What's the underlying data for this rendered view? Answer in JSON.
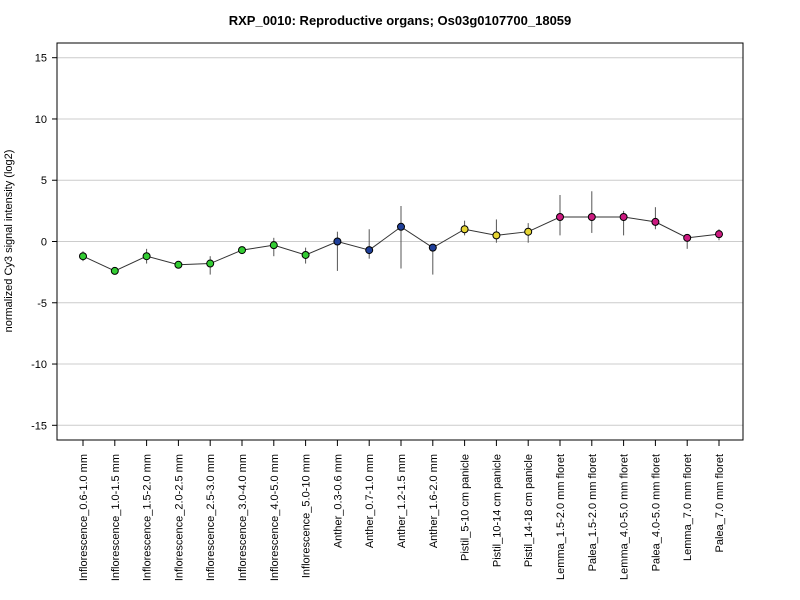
{
  "chart_data": {
    "type": "line",
    "title": "RXP_0010: Reproductive organs; Os03g0107700_18059",
    "xlabel": "",
    "ylabel": "normalized Cy3 signal intensity (log2)",
    "ylim": [
      -16.2,
      16.2
    ],
    "yticks": [
      -15,
      -10,
      -5,
      0,
      5,
      10,
      15
    ],
    "grid": true,
    "legend": "none",
    "categories": [
      "Inflorescence_0.6-1.0 mm",
      "Inflorescence_1.0-1.5 mm",
      "Inflorescence_1.5-2.0 mm",
      "Inflorescence_2.0-2.5 mm",
      "Inflorescence_2.5-3.0 mm",
      "Inflorescence_3.0-4.0 mm",
      "Inflorescence_4.0-5.0 mm",
      "Inflorescence_5.0-10 mm",
      "Anther_0.3-0.6 mm",
      "Anther_0.7-1.0 mm",
      "Anther_1.2-1.5 mm",
      "Anther_1.6-2.0 mm",
      "Pistil_5-10 cm panicle",
      "Pistil_10-14 cm panicle",
      "Pistil_14-18 cm panicle",
      "Lemma_1.5-2.0 mm floret",
      "Palea_1.5-2.0 mm floret",
      "Lemma_4.0-5.0 mm floret",
      "Palea_4.0-5.0 mm floret",
      "Lemma_7.0 mm floret",
      "Palea_7.0 mm floret"
    ],
    "series": [
      {
        "values": [
          -1.2,
          -2.4,
          -1.2,
          -1.9,
          -1.8,
          -0.7,
          -0.3,
          -1.1,
          0.0,
          -0.7,
          1.2,
          -0.5,
          1.0,
          0.5,
          0.8,
          2.0,
          2.0,
          2.0,
          1.6,
          0.3,
          0.6
        ],
        "err_low": [
          -1.6,
          -2.6,
          -1.8,
          -2.0,
          -2.7,
          -1.0,
          -1.2,
          -1.8,
          -2.4,
          -1.4,
          -2.2,
          -2.7,
          0.5,
          -0.1,
          -0.1,
          0.5,
          0.7,
          0.5,
          1.0,
          -0.6,
          0.1
        ],
        "err_high": [
          -0.8,
          -2.2,
          -0.6,
          -1.8,
          -1.2,
          -0.4,
          0.3,
          -0.5,
          0.8,
          1.0,
          2.9,
          -0.2,
          1.7,
          1.8,
          1.5,
          3.8,
          4.1,
          2.5,
          2.8,
          0.6,
          1.0
        ],
        "colors": [
          "#33cc33",
          "#33cc33",
          "#33cc33",
          "#33cc33",
          "#33cc33",
          "#33cc33",
          "#33cc33",
          "#33cc33",
          "#1f3f99",
          "#1f3f99",
          "#1f3f99",
          "#1f3f99",
          "#e6d533",
          "#e6d533",
          "#e6d533",
          "#cc1a80",
          "#cc1a80",
          "#cc1a80",
          "#cc1a80",
          "#cc1a80",
          "#cc1a80"
        ]
      }
    ]
  }
}
